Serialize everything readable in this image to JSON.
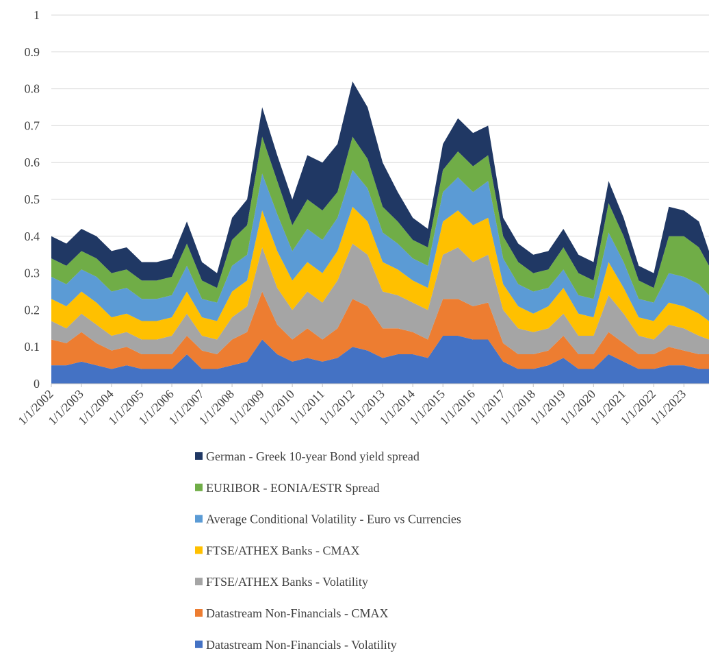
{
  "chart_data": {
    "type": "stacked-area",
    "x": [
      "1/1/2002",
      "7/1/2002",
      "1/1/2003",
      "7/1/2003",
      "1/1/2004",
      "7/1/2004",
      "1/1/2005",
      "7/1/2005",
      "1/1/2006",
      "7/1/2006",
      "1/1/2007",
      "7/1/2007",
      "1/1/2008",
      "7/1/2008",
      "1/1/2009",
      "7/1/2009",
      "1/1/2010",
      "7/1/2010",
      "1/1/2011",
      "7/1/2011",
      "1/1/2012",
      "7/1/2012",
      "1/1/2013",
      "7/1/2013",
      "1/1/2014",
      "7/1/2014",
      "1/1/2015",
      "7/1/2015",
      "1/1/2016",
      "7/1/2016",
      "1/1/2017",
      "7/1/2017",
      "1/1/2018",
      "7/1/2018",
      "1/1/2019",
      "7/1/2019",
      "1/1/2020",
      "7/1/2020",
      "1/1/2021",
      "7/1/2021",
      "1/1/2022",
      "7/1/2022",
      "1/1/2023",
      "7/1/2023",
      "11/1/2023"
    ],
    "xlim": [
      "1/1/2002",
      "11/1/2023"
    ],
    "xticks": [
      "1/1/2002",
      "1/1/2003",
      "1/1/2004",
      "1/1/2005",
      "1/1/2006",
      "1/1/2007",
      "1/1/2008",
      "1/1/2009",
      "1/1/2010",
      "1/1/2011",
      "1/1/2012",
      "1/1/2013",
      "1/1/2014",
      "1/1/2015",
      "1/1/2016",
      "1/1/2017",
      "1/1/2018",
      "1/1/2019",
      "1/1/2020",
      "1/1/2021",
      "1/1/2022",
      "1/1/2023"
    ],
    "ylim": [
      0,
      1
    ],
    "yticks": [
      0,
      0.1,
      0.2,
      0.3,
      0.4,
      0.5,
      0.6,
      0.7,
      0.8,
      0.9,
      1
    ],
    "grid": true,
    "series": [
      {
        "name": "Datastream Non-Financials - Volatility",
        "color": "#4472c4",
        "values": [
          0.05,
          0.05,
          0.06,
          0.05,
          0.04,
          0.05,
          0.04,
          0.04,
          0.04,
          0.08,
          0.04,
          0.04,
          0.05,
          0.06,
          0.12,
          0.08,
          0.06,
          0.07,
          0.06,
          0.07,
          0.1,
          0.09,
          0.07,
          0.08,
          0.08,
          0.07,
          0.13,
          0.13,
          0.12,
          0.12,
          0.06,
          0.04,
          0.04,
          0.05,
          0.07,
          0.04,
          0.04,
          0.08,
          0.06,
          0.04,
          0.04,
          0.05,
          0.05,
          0.04,
          0.04
        ]
      },
      {
        "name": "Datastream Non-Financials - CMAX",
        "color": "#ed7d31",
        "values": [
          0.07,
          0.06,
          0.08,
          0.06,
          0.05,
          0.05,
          0.04,
          0.04,
          0.04,
          0.05,
          0.05,
          0.04,
          0.07,
          0.08,
          0.13,
          0.08,
          0.06,
          0.08,
          0.06,
          0.08,
          0.13,
          0.12,
          0.08,
          0.07,
          0.06,
          0.05,
          0.1,
          0.1,
          0.09,
          0.1,
          0.05,
          0.04,
          0.04,
          0.04,
          0.06,
          0.04,
          0.04,
          0.06,
          0.05,
          0.04,
          0.04,
          0.05,
          0.04,
          0.04,
          0.04
        ]
      },
      {
        "name": "FTSE/ATHEX Banks - Volatility",
        "color": "#a5a5a5",
        "values": [
          0.05,
          0.04,
          0.05,
          0.05,
          0.04,
          0.04,
          0.04,
          0.04,
          0.05,
          0.06,
          0.04,
          0.04,
          0.06,
          0.07,
          0.12,
          0.1,
          0.08,
          0.1,
          0.1,
          0.13,
          0.15,
          0.14,
          0.1,
          0.09,
          0.08,
          0.08,
          0.12,
          0.14,
          0.12,
          0.13,
          0.09,
          0.07,
          0.06,
          0.06,
          0.06,
          0.05,
          0.05,
          0.1,
          0.08,
          0.05,
          0.04,
          0.06,
          0.06,
          0.05,
          0.04
        ]
      },
      {
        "name": "FTSE/ATHEX Banks - CMAX",
        "color": "#ffc000",
        "values": [
          0.06,
          0.06,
          0.06,
          0.06,
          0.05,
          0.05,
          0.05,
          0.05,
          0.05,
          0.06,
          0.05,
          0.05,
          0.07,
          0.07,
          0.1,
          0.1,
          0.08,
          0.08,
          0.08,
          0.08,
          0.1,
          0.09,
          0.08,
          0.07,
          0.06,
          0.06,
          0.09,
          0.1,
          0.1,
          0.1,
          0.07,
          0.06,
          0.05,
          0.06,
          0.07,
          0.06,
          0.05,
          0.09,
          0.07,
          0.05,
          0.05,
          0.06,
          0.06,
          0.06,
          0.05
        ]
      },
      {
        "name": "Average Conditional Volatility - Euro vs Currencies",
        "color": "#5b9bd5",
        "values": [
          0.06,
          0.06,
          0.06,
          0.07,
          0.07,
          0.07,
          0.06,
          0.06,
          0.06,
          0.07,
          0.05,
          0.05,
          0.07,
          0.07,
          0.1,
          0.1,
          0.08,
          0.09,
          0.09,
          0.09,
          0.1,
          0.09,
          0.08,
          0.07,
          0.06,
          0.06,
          0.08,
          0.09,
          0.09,
          0.1,
          0.07,
          0.06,
          0.06,
          0.05,
          0.05,
          0.05,
          0.05,
          0.08,
          0.07,
          0.05,
          0.05,
          0.08,
          0.08,
          0.08,
          0.07
        ]
      },
      {
        "name": "EURIBOR - EONIA/ESTR Spread",
        "color": "#70ad47",
        "values": [
          0.05,
          0.05,
          0.05,
          0.05,
          0.05,
          0.05,
          0.05,
          0.05,
          0.05,
          0.06,
          0.05,
          0.04,
          0.07,
          0.08,
          0.1,
          0.09,
          0.07,
          0.08,
          0.08,
          0.07,
          0.09,
          0.08,
          0.07,
          0.06,
          0.05,
          0.05,
          0.06,
          0.07,
          0.07,
          0.07,
          0.06,
          0.06,
          0.05,
          0.05,
          0.06,
          0.06,
          0.05,
          0.08,
          0.07,
          0.05,
          0.04,
          0.1,
          0.11,
          0.1,
          0.08
        ]
      },
      {
        "name": "German - Greek 10-year Bond yield spread",
        "color": "#203864",
        "values": [
          0.06,
          0.06,
          0.06,
          0.06,
          0.06,
          0.06,
          0.05,
          0.05,
          0.05,
          0.06,
          0.05,
          0.04,
          0.06,
          0.07,
          0.08,
          0.07,
          0.07,
          0.12,
          0.13,
          0.13,
          0.15,
          0.14,
          0.12,
          0.08,
          0.06,
          0.05,
          0.07,
          0.09,
          0.09,
          0.08,
          0.05,
          0.05,
          0.05,
          0.05,
          0.05,
          0.05,
          0.05,
          0.06,
          0.05,
          0.04,
          0.04,
          0.08,
          0.07,
          0.07,
          0.04
        ]
      }
    ]
  }
}
